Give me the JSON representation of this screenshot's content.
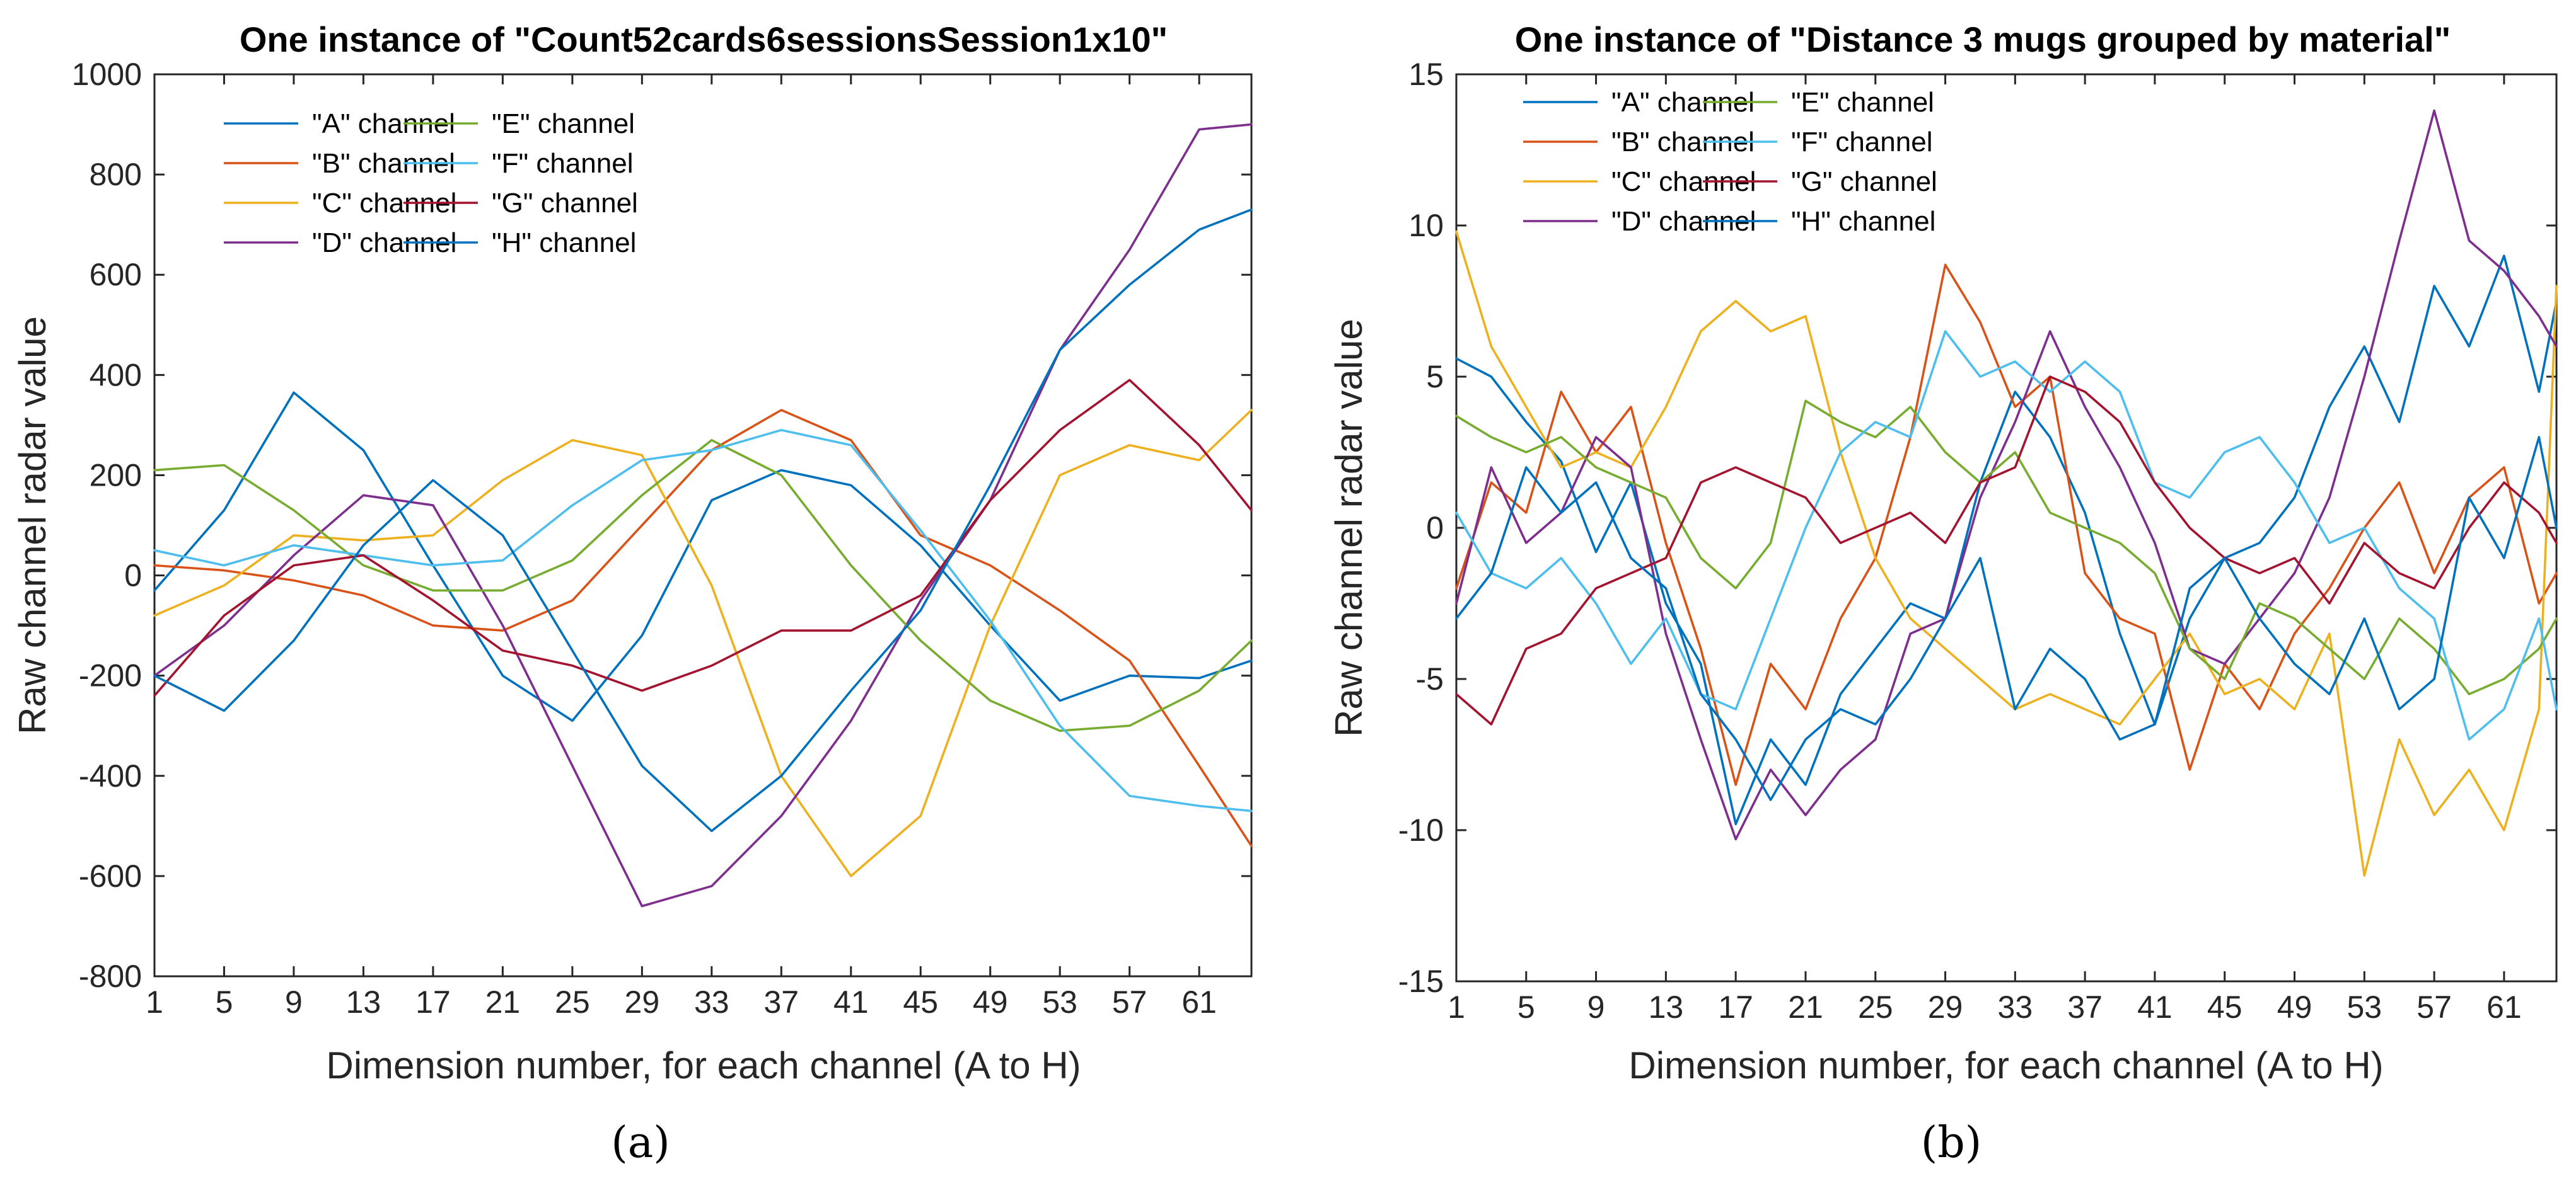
{
  "colors": {
    "A": "#0072BD",
    "B": "#D95319",
    "C": "#EDB120",
    "D": "#7E2F8E",
    "E": "#77AC30",
    "F": "#4DBEEE",
    "G": "#A2142F",
    "H": "#0072BD"
  },
  "chart_data": [
    {
      "type": "line",
      "panel_label": "(a)",
      "title": "One instance of \"Count52cards6sessionsSession1x10\"",
      "xlabel": "Dimension number, for each channel (A to H)",
      "ylabel": "Raw channel radar value",
      "xlim": [
        1,
        64
      ],
      "ylim": [
        -800,
        1000
      ],
      "xticks": [
        1,
        5,
        9,
        13,
        17,
        21,
        25,
        29,
        33,
        37,
        41,
        45,
        49,
        53,
        57,
        61
      ],
      "yticks": [
        -800,
        -600,
        -400,
        -200,
        0,
        200,
        400,
        600,
        800,
        1000
      ],
      "legend_position": "top-left",
      "series": [
        {
          "name": "\"A\" channel",
          "key": "A",
          "x": [
            1,
            5,
            9,
            13,
            17,
            21,
            25,
            29,
            33,
            37,
            41,
            45,
            49,
            53,
            57,
            61,
            64
          ],
          "values": [
            -30,
            130,
            365,
            250,
            20,
            -200,
            -290,
            -120,
            150,
            210,
            180,
            60,
            -100,
            -250,
            -200,
            -205,
            -170
          ]
        },
        {
          "name": "\"B\" channel",
          "key": "B",
          "x": [
            1,
            5,
            9,
            13,
            17,
            21,
            25,
            29,
            33,
            37,
            41,
            45,
            49,
            53,
            57,
            61,
            64
          ],
          "values": [
            20,
            10,
            -10,
            -40,
            -100,
            -110,
            -50,
            100,
            250,
            330,
            270,
            80,
            20,
            -70,
            -170,
            -380,
            -540
          ]
        },
        {
          "name": "\"C\" channel",
          "key": "C",
          "x": [
            1,
            5,
            9,
            13,
            17,
            21,
            25,
            29,
            33,
            37,
            41,
            45,
            49,
            53,
            57,
            61,
            64
          ],
          "values": [
            -80,
            -20,
            80,
            70,
            80,
            190,
            270,
            240,
            -20,
            -400,
            -600,
            -480,
            -100,
            200,
            260,
            230,
            330
          ]
        },
        {
          "name": "\"D\" channel",
          "key": "D",
          "x": [
            1,
            5,
            9,
            13,
            17,
            21,
            25,
            29,
            33,
            37,
            41,
            45,
            49,
            53,
            57,
            61,
            64
          ],
          "values": [
            -200,
            -100,
            40,
            160,
            140,
            -100,
            -380,
            -660,
            -620,
            -480,
            -290,
            -50,
            150,
            450,
            650,
            890,
            900
          ]
        },
        {
          "name": "\"E\" channel",
          "key": "E",
          "x": [
            1,
            5,
            9,
            13,
            17,
            21,
            25,
            29,
            33,
            37,
            41,
            45,
            49,
            53,
            57,
            61,
            64
          ],
          "values": [
            210,
            220,
            130,
            20,
            -30,
            -30,
            30,
            160,
            270,
            200,
            20,
            -130,
            -250,
            -310,
            -300,
            -230,
            -130
          ]
        },
        {
          "name": "\"F\" channel",
          "key": "F",
          "x": [
            1,
            5,
            9,
            13,
            17,
            21,
            25,
            29,
            33,
            37,
            41,
            45,
            49,
            53,
            57,
            61,
            64
          ],
          "values": [
            50,
            20,
            60,
            40,
            20,
            30,
            140,
            230,
            250,
            290,
            260,
            90,
            -90,
            -300,
            -440,
            -460,
            -470
          ]
        },
        {
          "name": "\"G\" channel",
          "key": "G",
          "x": [
            1,
            5,
            9,
            13,
            17,
            21,
            25,
            29,
            33,
            37,
            41,
            45,
            49,
            53,
            57,
            61,
            64
          ],
          "values": [
            -240,
            -80,
            20,
            40,
            -50,
            -150,
            -180,
            -230,
            -180,
            -110,
            -110,
            -40,
            150,
            290,
            390,
            260,
            130
          ]
        },
        {
          "name": "\"H\" channel",
          "key": "H",
          "x": [
            1,
            5,
            9,
            13,
            17,
            21,
            25,
            29,
            33,
            37,
            41,
            45,
            49,
            53,
            57,
            61,
            64
          ],
          "values": [
            -200,
            -270,
            -130,
            60,
            190,
            80,
            -150,
            -380,
            -510,
            -400,
            -230,
            -70,
            180,
            450,
            580,
            690,
            730
          ]
        }
      ]
    },
    {
      "type": "line",
      "panel_label": "(b)",
      "title": "One instance of \"Distance 3 mugs grouped by material\"",
      "xlabel": "Dimension number, for each channel (A to H)",
      "ylabel": "Raw channel radar value",
      "xlim": [
        1,
        64
      ],
      "ylim": [
        -15,
        15
      ],
      "xticks": [
        1,
        5,
        9,
        13,
        17,
        21,
        25,
        29,
        33,
        37,
        41,
        45,
        49,
        53,
        57,
        61
      ],
      "yticks": [
        -15,
        -10,
        -5,
        0,
        5,
        10,
        15
      ],
      "legend_position": "top-left",
      "series": [
        {
          "name": "\"A\" channel",
          "key": "A",
          "x": [
            1,
            3,
            5,
            7,
            9,
            11,
            13,
            15,
            17,
            19,
            21,
            23,
            25,
            27,
            29,
            31,
            33,
            35,
            37,
            39,
            41,
            43,
            45,
            47,
            49,
            51,
            53,
            55,
            57,
            59,
            61,
            63,
            64
          ],
          "values": [
            5.6,
            5,
            3.5,
            2.2,
            -0.8,
            1.5,
            -2.5,
            -4.5,
            -9.8,
            -7,
            -8.5,
            -5.5,
            -4,
            -2.5,
            -3,
            1.5,
            4.5,
            3,
            0.5,
            -3.5,
            -6.5,
            -3,
            -1,
            -0.5,
            1,
            4,
            6,
            3.5,
            8,
            6,
            9,
            4.5,
            7.5
          ]
        },
        {
          "name": "\"B\" channel",
          "key": "B",
          "x": [
            1,
            3,
            5,
            7,
            9,
            11,
            13,
            15,
            17,
            19,
            21,
            23,
            25,
            27,
            29,
            31,
            33,
            35,
            37,
            39,
            41,
            43,
            45,
            47,
            49,
            51,
            53,
            55,
            57,
            59,
            61,
            63,
            64
          ],
          "values": [
            -2,
            1.5,
            0.5,
            4.5,
            2.5,
            4,
            -0.5,
            -4,
            -8.5,
            -4.5,
            -6,
            -3,
            -1,
            3,
            8.7,
            6.8,
            4,
            5,
            -1.5,
            -3,
            -3.5,
            -8,
            -4.5,
            -6,
            -3.5,
            -2,
            0,
            1.5,
            -1.5,
            1,
            2,
            -2.5,
            -1.5
          ]
        },
        {
          "name": "\"C\" channel",
          "key": "C",
          "x": [
            1,
            3,
            5,
            7,
            9,
            11,
            13,
            15,
            17,
            19,
            21,
            23,
            25,
            27,
            29,
            31,
            33,
            35,
            37,
            39,
            41,
            43,
            45,
            47,
            49,
            51,
            53,
            55,
            57,
            59,
            61,
            63,
            64
          ],
          "values": [
            9.8,
            6,
            4,
            2,
            2.5,
            2,
            4,
            6.5,
            7.5,
            6.5,
            7,
            2.5,
            -1,
            -3,
            -4,
            -5,
            -6,
            -5.5,
            -6,
            -6.5,
            -5,
            -3.5,
            -5.5,
            -5,
            -6,
            -3.5,
            -11.5,
            -7,
            -9.5,
            -8,
            -10,
            -6,
            8
          ]
        },
        {
          "name": "\"D\" channel",
          "key": "D",
          "x": [
            1,
            3,
            5,
            7,
            9,
            11,
            13,
            15,
            17,
            19,
            21,
            23,
            25,
            27,
            29,
            31,
            33,
            35,
            37,
            39,
            41,
            43,
            45,
            47,
            49,
            51,
            53,
            55,
            57,
            59,
            61,
            63,
            64
          ],
          "values": [
            -2.5,
            2,
            -0.5,
            0.5,
            3,
            2,
            -3.5,
            -7,
            -10.3,
            -8,
            -9.5,
            -8,
            -7,
            -3.5,
            -3,
            1,
            3.5,
            6.5,
            4,
            2,
            -0.5,
            -4,
            -4.5,
            -3,
            -1.5,
            1,
            5,
            9.5,
            13.8,
            9.5,
            8.5,
            7,
            6
          ]
        },
        {
          "name": "\"E\" channel",
          "key": "E",
          "x": [
            1,
            3,
            5,
            7,
            9,
            11,
            13,
            15,
            17,
            19,
            21,
            23,
            25,
            27,
            29,
            31,
            33,
            35,
            37,
            39,
            41,
            43,
            45,
            47,
            49,
            51,
            53,
            55,
            57,
            59,
            61,
            63,
            64
          ],
          "values": [
            3.7,
            3,
            2.5,
            3,
            2,
            1.5,
            1,
            -1,
            -2,
            -0.5,
            4.2,
            3.5,
            3,
            4,
            2.5,
            1.5,
            2.5,
            0.5,
            0,
            -0.5,
            -1.5,
            -4,
            -5,
            -2.5,
            -3,
            -4,
            -5,
            -3,
            -4,
            -5.5,
            -5,
            -4,
            -3
          ]
        },
        {
          "name": "\"F\" channel",
          "key": "F",
          "x": [
            1,
            3,
            5,
            7,
            9,
            11,
            13,
            15,
            17,
            19,
            21,
            23,
            25,
            27,
            29,
            31,
            33,
            35,
            37,
            39,
            41,
            43,
            45,
            47,
            49,
            51,
            53,
            55,
            57,
            59,
            61,
            63,
            64
          ],
          "values": [
            0.5,
            -1.5,
            -2,
            -1,
            -2.5,
            -4.5,
            -3,
            -5.5,
            -6,
            -3,
            0,
            2.5,
            3.5,
            3,
            6.5,
            5,
            5.5,
            4.5,
            5.5,
            4.5,
            1.5,
            1,
            2.5,
            3,
            1.5,
            -0.5,
            0,
            -2,
            -3,
            -7,
            -6,
            -3,
            -6
          ]
        },
        {
          "name": "\"G\" channel",
          "key": "G",
          "x": [
            1,
            3,
            5,
            7,
            9,
            11,
            13,
            15,
            17,
            19,
            21,
            23,
            25,
            27,
            29,
            31,
            33,
            35,
            37,
            39,
            41,
            43,
            45,
            47,
            49,
            51,
            53,
            55,
            57,
            59,
            61,
            63,
            64
          ],
          "values": [
            -5.5,
            -6.5,
            -4,
            -3.5,
            -2,
            -1.5,
            -1,
            1.5,
            2,
            1.5,
            1,
            -0.5,
            0,
            0.5,
            -0.5,
            1.5,
            2,
            5,
            4.5,
            3.5,
            1.5,
            0,
            -1,
            -1.5,
            -1,
            -2.5,
            -0.5,
            -1.5,
            -2,
            0,
            1.5,
            0.5,
            -0.5
          ]
        },
        {
          "name": "\"H\" channel",
          "key": "H",
          "x": [
            1,
            3,
            5,
            7,
            9,
            11,
            13,
            15,
            17,
            19,
            21,
            23,
            25,
            27,
            29,
            31,
            33,
            35,
            37,
            39,
            41,
            43,
            45,
            47,
            49,
            51,
            53,
            55,
            57,
            59,
            61,
            63,
            64
          ],
          "values": [
            -3,
            -1.5,
            2,
            0.5,
            1.5,
            -1,
            -2,
            -5.5,
            -7,
            -9,
            -7,
            -6,
            -6.5,
            -5,
            -3,
            -1,
            -6,
            -4,
            -5,
            -7,
            -6.5,
            -2,
            -1,
            -3,
            -4.5,
            -5.5,
            -3,
            -6,
            -5,
            1,
            -1,
            3,
            0
          ]
        }
      ]
    }
  ]
}
